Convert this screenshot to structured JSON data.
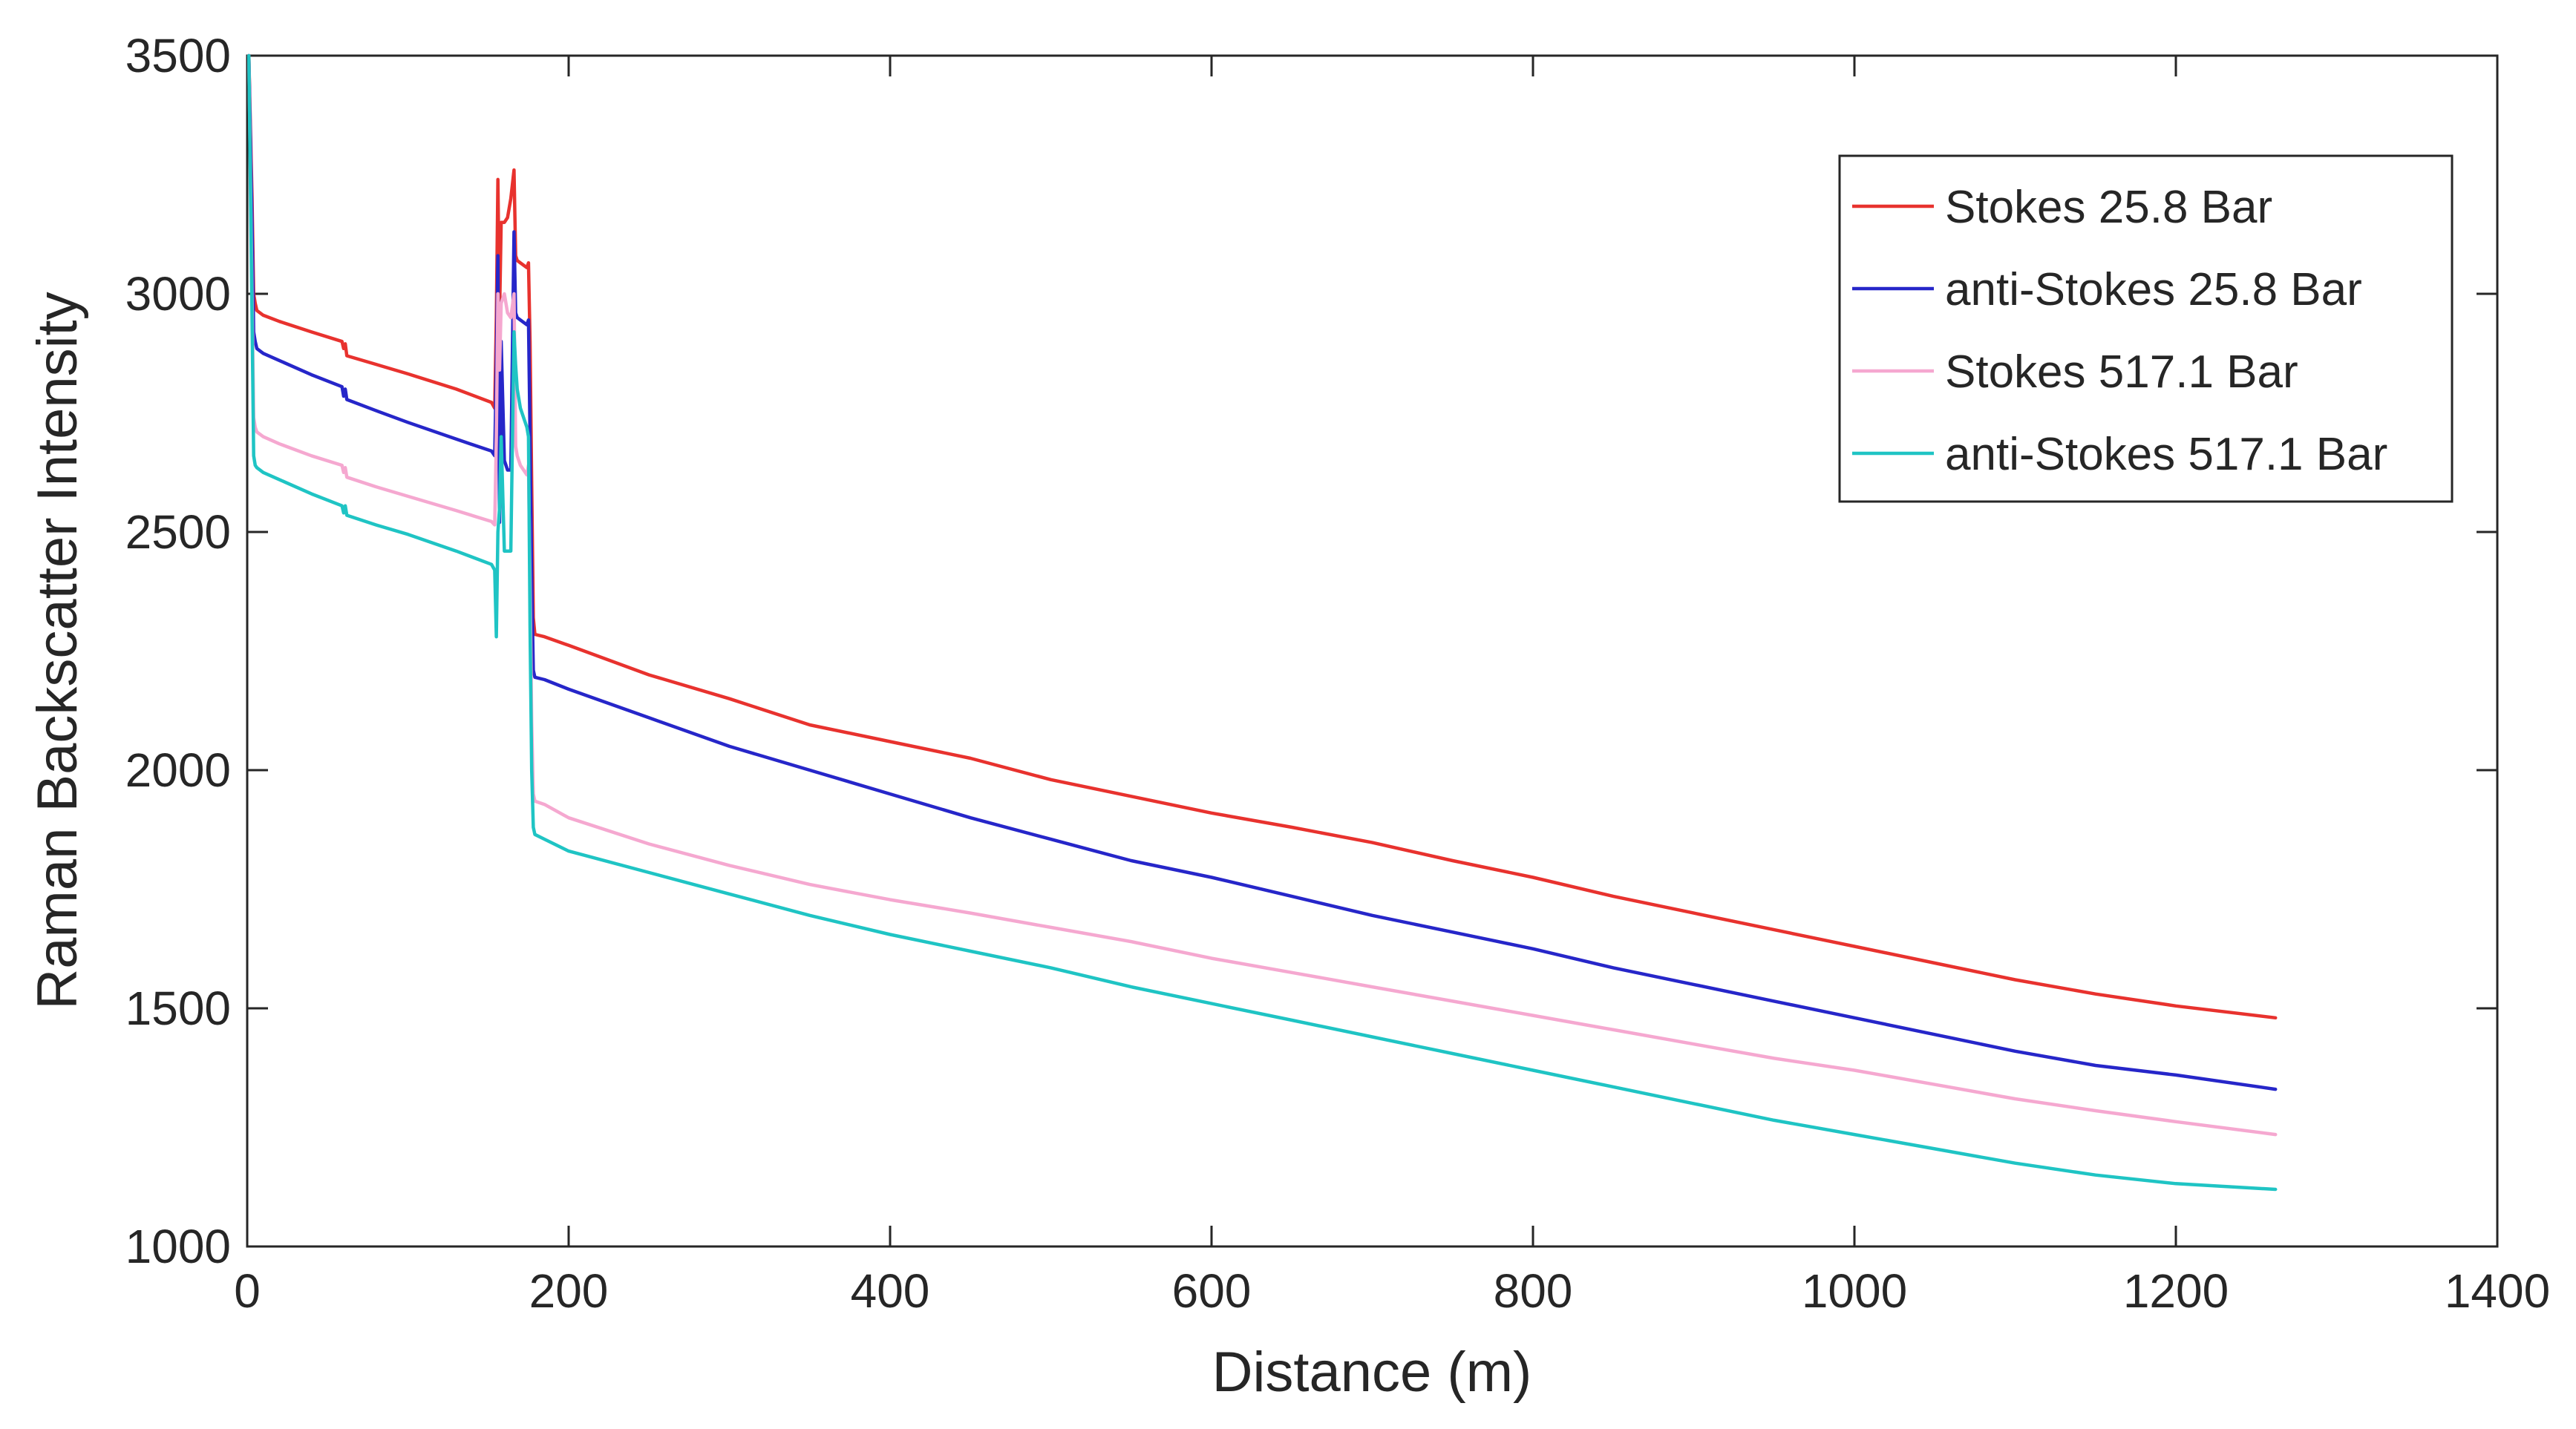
{
  "chart_data": {
    "type": "line",
    "title": "",
    "xlabel": "Distance (m)",
    "ylabel": "Raman Backscatter Intensity",
    "xlim": [
      0,
      1400
    ],
    "ylim": [
      1000,
      3500
    ],
    "xticks": [
      0,
      200,
      400,
      600,
      800,
      1000,
      1200,
      1400
    ],
    "yticks": [
      1000,
      1500,
      2000,
      2500,
      3000,
      3500
    ],
    "grid": false,
    "legend_position": "top-right",
    "series": [
      {
        "name": "Stokes 25.8 Bar",
        "color": "#e8322e",
        "points": [
          [
            1,
            3500
          ],
          [
            3,
            3200
          ],
          [
            4,
            3000
          ],
          [
            5,
            2980
          ],
          [
            6,
            2965
          ],
          [
            10,
            2955
          ],
          [
            20,
            2942
          ],
          [
            40,
            2920
          ],
          [
            59,
            2900
          ],
          [
            60,
            2885
          ],
          [
            61,
            2895
          ],
          [
            62,
            2870
          ],
          [
            80,
            2852
          ],
          [
            100,
            2832
          ],
          [
            130,
            2800
          ],
          [
            152,
            2772
          ],
          [
            154,
            2760
          ],
          [
            155,
            2950
          ],
          [
            156,
            3240
          ],
          [
            157,
            2950
          ],
          [
            158,
            3150
          ],
          [
            160,
            3150
          ],
          [
            162,
            3160
          ],
          [
            164,
            3200
          ],
          [
            166,
            3260
          ],
          [
            167,
            3080
          ],
          [
            168,
            3070
          ],
          [
            170,
            3065
          ],
          [
            174,
            3055
          ],
          [
            175,
            3065
          ],
          [
            176,
            2900
          ],
          [
            177,
            2600
          ],
          [
            178,
            2320
          ],
          [
            179,
            2285
          ],
          [
            185,
            2280
          ],
          [
            200,
            2262
          ],
          [
            250,
            2200
          ],
          [
            300,
            2150
          ],
          [
            350,
            2095
          ],
          [
            400,
            2060
          ],
          [
            450,
            2025
          ],
          [
            500,
            1980
          ],
          [
            550,
            1945
          ],
          [
            600,
            1910
          ],
          [
            650,
            1880
          ],
          [
            700,
            1848
          ],
          [
            750,
            1810
          ],
          [
            800,
            1775
          ],
          [
            850,
            1735
          ],
          [
            900,
            1700
          ],
          [
            950,
            1665
          ],
          [
            1000,
            1630
          ],
          [
            1050,
            1595
          ],
          [
            1100,
            1560
          ],
          [
            1150,
            1530
          ],
          [
            1200,
            1505
          ],
          [
            1262,
            1480
          ]
        ]
      },
      {
        "name": "anti-Stokes 25.8 Bar",
        "color": "#2626c9",
        "points": [
          [
            1,
            3500
          ],
          [
            3,
            3150
          ],
          [
            4,
            2920
          ],
          [
            5,
            2900
          ],
          [
            6,
            2885
          ],
          [
            10,
            2875
          ],
          [
            20,
            2860
          ],
          [
            40,
            2830
          ],
          [
            59,
            2805
          ],
          [
            60,
            2785
          ],
          [
            61,
            2800
          ],
          [
            62,
            2778
          ],
          [
            80,
            2755
          ],
          [
            100,
            2730
          ],
          [
            130,
            2695
          ],
          [
            152,
            2670
          ],
          [
            154,
            2660
          ],
          [
            155,
            2850
          ],
          [
            156,
            3080
          ],
          [
            157,
            2520
          ],
          [
            158,
            2900
          ],
          [
            160,
            2650
          ],
          [
            162,
            2630
          ],
          [
            164,
            2630
          ],
          [
            166,
            3130
          ],
          [
            167,
            2960
          ],
          [
            168,
            2950
          ],
          [
            170,
            2945
          ],
          [
            174,
            2935
          ],
          [
            175,
            2945
          ],
          [
            176,
            2700
          ],
          [
            177,
            2400
          ],
          [
            178,
            2210
          ],
          [
            179,
            2195
          ],
          [
            185,
            2190
          ],
          [
            200,
            2170
          ],
          [
            250,
            2110
          ],
          [
            300,
            2050
          ],
          [
            350,
            2000
          ],
          [
            400,
            1950
          ],
          [
            450,
            1900
          ],
          [
            500,
            1855
          ],
          [
            550,
            1810
          ],
          [
            600,
            1775
          ],
          [
            650,
            1735
          ],
          [
            700,
            1695
          ],
          [
            750,
            1660
          ],
          [
            800,
            1625
          ],
          [
            850,
            1585
          ],
          [
            900,
            1550
          ],
          [
            950,
            1515
          ],
          [
            1000,
            1480
          ],
          [
            1050,
            1445
          ],
          [
            1100,
            1410
          ],
          [
            1150,
            1380
          ],
          [
            1200,
            1360
          ],
          [
            1262,
            1330
          ]
        ]
      },
      {
        "name": "Stokes 517.1 Bar",
        "color": "#f5a8d0",
        "points": [
          [
            1,
            3500
          ],
          [
            3,
            3000
          ],
          [
            4,
            2740
          ],
          [
            5,
            2720
          ],
          [
            6,
            2710
          ],
          [
            10,
            2700
          ],
          [
            20,
            2685
          ],
          [
            40,
            2660
          ],
          [
            59,
            2640
          ],
          [
            60,
            2625
          ],
          [
            61,
            2635
          ],
          [
            62,
            2615
          ],
          [
            80,
            2595
          ],
          [
            100,
            2575
          ],
          [
            130,
            2545
          ],
          [
            152,
            2522
          ],
          [
            154,
            2515
          ],
          [
            155,
            2700
          ],
          [
            156,
            3000
          ],
          [
            157,
            2840
          ],
          [
            158,
            2980
          ],
          [
            160,
            3000
          ],
          [
            162,
            2960
          ],
          [
            164,
            2950
          ],
          [
            166,
            3000
          ],
          [
            167,
            2680
          ],
          [
            168,
            2660
          ],
          [
            170,
            2640
          ],
          [
            174,
            2620
          ],
          [
            175,
            2640
          ],
          [
            176,
            2400
          ],
          [
            177,
            2100
          ],
          [
            178,
            1950
          ],
          [
            179,
            1935
          ],
          [
            185,
            1928
          ],
          [
            200,
            1900
          ],
          [
            250,
            1845
          ],
          [
            300,
            1800
          ],
          [
            350,
            1760
          ],
          [
            400,
            1728
          ],
          [
            450,
            1700
          ],
          [
            500,
            1670
          ],
          [
            550,
            1640
          ],
          [
            600,
            1605
          ],
          [
            650,
            1575
          ],
          [
            700,
            1545
          ],
          [
            750,
            1515
          ],
          [
            800,
            1485
          ],
          [
            850,
            1455
          ],
          [
            900,
            1425
          ],
          [
            950,
            1395
          ],
          [
            1000,
            1370
          ],
          [
            1050,
            1340
          ],
          [
            1100,
            1310
          ],
          [
            1150,
            1285
          ],
          [
            1200,
            1262
          ],
          [
            1262,
            1235
          ]
        ]
      },
      {
        "name": "anti-Stokes 517.1 Bar",
        "color": "#1fc4c4",
        "points": [
          [
            1,
            3500
          ],
          [
            3,
            2950
          ],
          [
            4,
            2660
          ],
          [
            5,
            2640
          ],
          [
            6,
            2635
          ],
          [
            10,
            2625
          ],
          [
            20,
            2610
          ],
          [
            40,
            2580
          ],
          [
            59,
            2555
          ],
          [
            60,
            2540
          ],
          [
            61,
            2555
          ],
          [
            62,
            2535
          ],
          [
            80,
            2515
          ],
          [
            100,
            2495
          ],
          [
            130,
            2460
          ],
          [
            152,
            2432
          ],
          [
            154,
            2420
          ],
          [
            155,
            2280
          ],
          [
            156,
            2500
          ],
          [
            157,
            2550
          ],
          [
            158,
            2700
          ],
          [
            160,
            2460
          ],
          [
            162,
            2460
          ],
          [
            164,
            2460
          ],
          [
            166,
            2920
          ],
          [
            167,
            2850
          ],
          [
            168,
            2800
          ],
          [
            170,
            2760
          ],
          [
            174,
            2720
          ],
          [
            175,
            2700
          ],
          [
            176,
            2300
          ],
          [
            177,
            2000
          ],
          [
            178,
            1880
          ],
          [
            179,
            1865
          ],
          [
            185,
            1855
          ],
          [
            200,
            1830
          ],
          [
            250,
            1785
          ],
          [
            300,
            1740
          ],
          [
            350,
            1695
          ],
          [
            400,
            1655
          ],
          [
            450,
            1620
          ],
          [
            500,
            1585
          ],
          [
            550,
            1545
          ],
          [
            600,
            1510
          ],
          [
            650,
            1475
          ],
          [
            700,
            1440
          ],
          [
            750,
            1405
          ],
          [
            800,
            1370
          ],
          [
            850,
            1335
          ],
          [
            900,
            1300
          ],
          [
            950,
            1265
          ],
          [
            1000,
            1235
          ],
          [
            1050,
            1205
          ],
          [
            1100,
            1175
          ],
          [
            1150,
            1150
          ],
          [
            1200,
            1132
          ],
          [
            1262,
            1120
          ]
        ]
      }
    ]
  }
}
